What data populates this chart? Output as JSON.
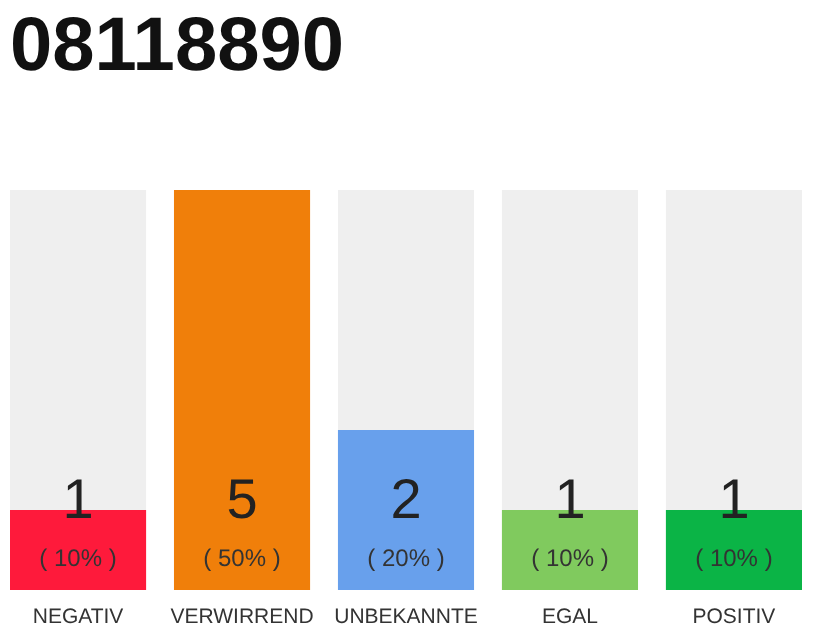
{
  "chart_data": {
    "type": "bar",
    "title": "08118890",
    "categories": [
      "NEGATIV",
      "VERWIRREND",
      "UNBEKANNTE",
      "EGAL",
      "POSITIV"
    ],
    "values": [
      10,
      50,
      20,
      10,
      10
    ],
    "colors": [
      "#fe1a3b",
      "#f07f0a",
      "#68a0ec",
      "#80ca5e",
      "#0bb446"
    ],
    "value_labels": [
      "( 10% )",
      "( 50% )",
      "( 20% )",
      "( 10% )",
      "( 10% )"
    ],
    "annotations": [
      "1",
      "5",
      "2",
      "1",
      "1"
    ],
    "tick_labels": "x"
  }
}
